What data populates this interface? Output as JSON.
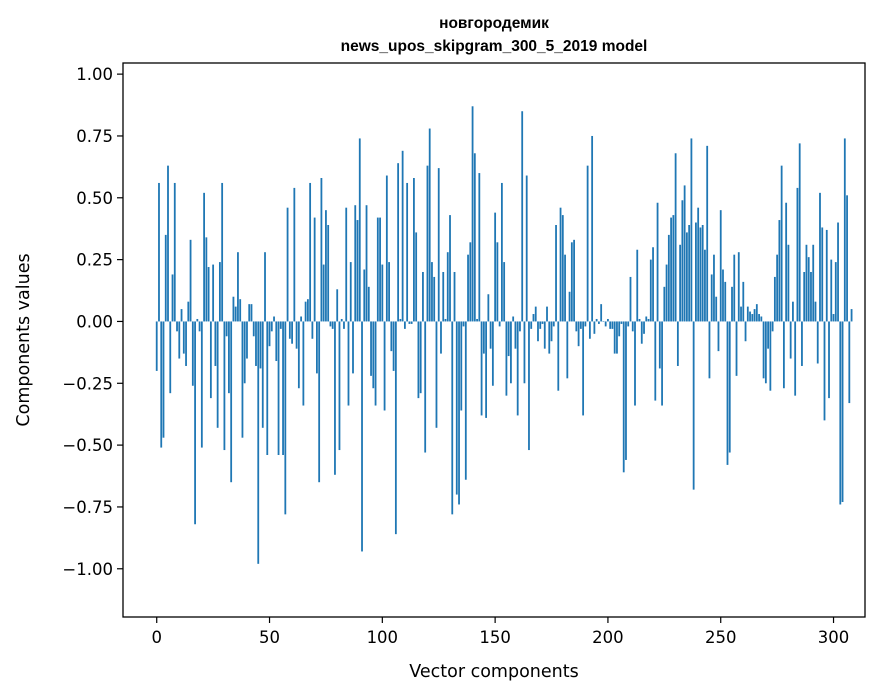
{
  "chart_data": {
    "type": "bar",
    "title_lines": [
      "новгородемик",
      "news_upos_skipgram_300_5_2019 model"
    ],
    "xlabel": "Vector components",
    "ylabel": "Components values",
    "xlim": [
      -14.95,
      313.95
    ],
    "ylim": [
      -1.195,
      1.045
    ],
    "xticks": [
      0,
      50,
      100,
      150,
      200,
      250,
      300
    ],
    "yticks": [
      -1.0,
      -0.75,
      -0.5,
      -0.25,
      0.0,
      0.25,
      0.5,
      0.75,
      1.0
    ],
    "ytick_labels": [
      "−1.00",
      "−0.75",
      "−0.50",
      "−0.25",
      "0.00",
      "0.25",
      "0.50",
      "0.75",
      "1.00"
    ],
    "bar_color": "#1f77b4",
    "values": [
      -0.2,
      0.56,
      -0.51,
      -0.47,
      0.35,
      0.63,
      -0.29,
      0.19,
      0.56,
      -0.04,
      -0.15,
      0.05,
      -0.13,
      -0.18,
      0.08,
      0.33,
      -0.26,
      -0.82,
      0.01,
      -0.04,
      -0.51,
      0.52,
      0.34,
      0.22,
      -0.31,
      0.23,
      -0.18,
      -0.43,
      0.24,
      0.56,
      -0.52,
      -0.06,
      -0.29,
      -0.65,
      0.1,
      0.06,
      0.28,
      0.09,
      -0.47,
      -0.25,
      -0.15,
      0.07,
      0.07,
      -0.06,
      -0.18,
      -0.98,
      -0.19,
      -0.43,
      0.28,
      -0.54,
      -0.1,
      -0.04,
      0.02,
      -0.16,
      -0.54,
      -0.03,
      -0.54,
      -0.78,
      0.46,
      -0.07,
      -0.09,
      0.54,
      -0.11,
      -0.27,
      0.02,
      -0.34,
      0.08,
      0.09,
      0.56,
      -0.07,
      0.42,
      -0.21,
      -0.65,
      0.58,
      0.23,
      0.45,
      0.39,
      -0.02,
      -0.03,
      -0.62,
      0.13,
      -0.52,
      0.01,
      -0.03,
      0.46,
      -0.34,
      0.24,
      -0.21,
      0.47,
      0.41,
      0.74,
      -0.93,
      0.21,
      0.47,
      0.14,
      -0.22,
      -0.27,
      -0.34,
      0.42,
      0.42,
      0.23,
      -0.36,
      0.59,
      0.24,
      -0.12,
      -0.2,
      -0.86,
      0.64,
      0.01,
      0.69,
      -0.03,
      0.56,
      -0.01,
      -0.01,
      0.58,
      0.36,
      -0.31,
      -0.29,
      0.2,
      -0.53,
      0.63,
      0.78,
      0.24,
      0.18,
      -0.43,
      0.62,
      -0.13,
      0.2,
      0.01,
      0.28,
      0.43,
      -0.78,
      0.2,
      -0.7,
      -0.74,
      -0.36,
      -0.02,
      -0.64,
      0.27,
      0.32,
      0.87,
      0.68,
      0.01,
      0.6,
      -0.38,
      -0.13,
      -0.39,
      0.11,
      -0.11,
      -0.26,
      0.44,
      0.32,
      -0.02,
      0.56,
      0.24,
      -0.3,
      -0.14,
      -0.25,
      0.02,
      -0.11,
      -0.38,
      -0.04,
      0.85,
      -0.25,
      0.59,
      -0.52,
      -0.03,
      0.03,
      0.06,
      -0.08,
      -0.03,
      -0.01,
      -0.11,
      0.06,
      -0.13,
      -0.08,
      -0.02,
      0.39,
      -0.28,
      0.46,
      0.43,
      0.27,
      -0.23,
      0.12,
      0.32,
      0.33,
      -0.04,
      -0.1,
      -0.03,
      -0.38,
      -0.02,
      0.63,
      -0.07,
      0.75,
      -0.05,
      0.01,
      -0.01,
      0.07,
      0.0,
      -0.02,
      0.01,
      -0.03,
      -0.03,
      -0.13,
      -0.13,
      -0.06,
      -0.01,
      -0.61,
      -0.56,
      -0.02,
      0.18,
      -0.04,
      -0.34,
      0.29,
      0.01,
      -0.09,
      -0.05,
      0.02,
      0.01,
      0.25,
      0.3,
      -0.32,
      0.48,
      -0.19,
      -0.34,
      0.14,
      0.23,
      0.35,
      0.42,
      0.43,
      0.68,
      -0.18,
      0.31,
      0.49,
      0.55,
      0.36,
      0.39,
      0.74,
      -0.68,
      0.4,
      0.46,
      0.38,
      0.39,
      0.29,
      0.71,
      -0.23,
      0.19,
      0.27,
      0.1,
      -0.12,
      0.45,
      0.21,
      0.16,
      -0.58,
      -0.53,
      0.14,
      0.27,
      -0.22,
      0.28,
      0.06,
      0.16,
      -0.08,
      0.06,
      0.04,
      0.03,
      0.05,
      0.07,
      0.03,
      0.02,
      -0.23,
      -0.25,
      -0.11,
      -0.28,
      -0.04,
      0.18,
      0.27,
      0.41,
      0.63,
      -0.27,
      0.48,
      0.31,
      -0.15,
      0.08,
      -0.3,
      0.54,
      0.72,
      -0.18,
      0.2,
      0.31,
      0.26,
      0.2,
      0.31,
      0.08,
      -0.17,
      0.52,
      0.38,
      -0.4,
      0.37,
      -0.31,
      0.25,
      0.03,
      0.24,
      0.4,
      -0.74,
      -0.73,
      0.74,
      0.51,
      -0.33,
      0.05
    ]
  }
}
